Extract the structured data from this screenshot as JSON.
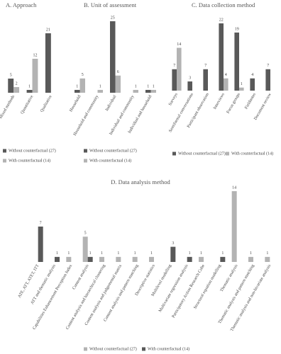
{
  "chart_data": [
    {
      "type": "bar",
      "title": "A. Approach",
      "categories": [
        "Mixed methods",
        "Quantitative",
        "Qualitative"
      ],
      "series": [
        {
          "name": "Without counterfactual (27)",
          "color": "#595959",
          "values": [
            5,
            1,
            21
          ]
        },
        {
          "name": "With counterfactual (14)",
          "color": "#b3b3b3",
          "values": [
            2,
            12,
            null
          ]
        }
      ]
    },
    {
      "type": "bar",
      "title": "B. Unit of assessment",
      "categories": [
        "Household",
        "Household and community",
        "Individual",
        "Individual and community",
        "Individual and household"
      ],
      "series": [
        {
          "name": "Without counterfactual (27)",
          "color": "#595959",
          "values": [
            1,
            null,
            25,
            null,
            1
          ]
        },
        {
          "name": "With counterfactual (14)",
          "color": "#b3b3b3",
          "values": [
            5,
            1,
            6,
            1,
            1
          ]
        }
      ]
    },
    {
      "type": "bar",
      "title": "C. Data collection method",
      "categories": [
        "Surveys",
        "Semiformal conversations",
        "Participant observation",
        "Interviews",
        "Focus groups",
        "Fieldnotes",
        "Document review"
      ],
      "series": [
        {
          "name": "Without counterfactual (27)",
          "color": "#595959",
          "values": [
            7,
            3,
            7,
            22,
            19,
            4,
            7
          ]
        },
        {
          "name": "With counterfactual (14)",
          "color": "#b3b3b3",
          "values": [
            14,
            null,
            null,
            4,
            1,
            null,
            null
          ]
        }
      ]
    },
    {
      "type": "bar",
      "title": "D. Data analysis method",
      "categories": [
        "ATE, ATT, ATET, ITT",
        "ATT and thematic analysis",
        "Capabilities Enhancement Perception Index",
        "Content analysis",
        "Content analysis and hierarchical clustering",
        "Content analysis and judgemental matrix",
        "Content analysis and pattern matching",
        "Descriptive statistics",
        "Multilevel modelling",
        "Multivariate regression analysis",
        "Participatory Action Research Cube",
        "Structural equation modelling",
        "Thematic analysis",
        "Thematic analysis and pattern matching",
        "Thematic analysis and non-bivariate analysis"
      ],
      "series": [
        {
          "name": "Without counterfactual (27)",
          "color": "#b3b3b3",
          "values": [
            null,
            null,
            1,
            5,
            1,
            1,
            1,
            1,
            null,
            null,
            1,
            null,
            14,
            1,
            1
          ]
        },
        {
          "name": "With counterfactual (14)",
          "color": "#595959",
          "values": [
            7,
            1,
            null,
            1,
            null,
            null,
            null,
            null,
            3,
            1,
            null,
            1,
            null,
            null,
            null
          ]
        }
      ]
    }
  ]
}
